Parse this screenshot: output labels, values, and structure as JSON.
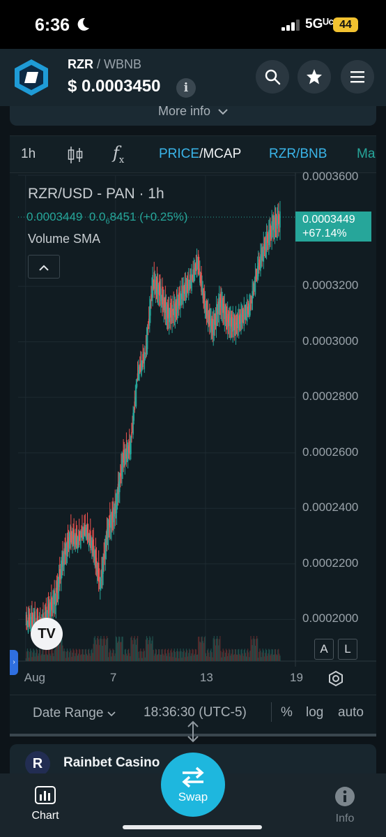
{
  "status": {
    "time": "6:36",
    "network": "5Gᵁᶜ",
    "battery": "44"
  },
  "header": {
    "base_symbol": "RZR",
    "separator": "/",
    "quote_symbol": "WBNB",
    "price": "$ 0.0003450"
  },
  "more_info_label": "More info",
  "toolbar": {
    "interval": "1h",
    "fx_label": "f",
    "fx_sub": "x",
    "price_label": "PRICE",
    "mcap_label": "/MCAP",
    "pair_label": "RZR/BNB",
    "ma_label": "Ma"
  },
  "legend": {
    "title": "RZR/USD - PAN · 1h",
    "value": "0.0003449",
    "change_prefix": "0.0",
    "change_sub": "6",
    "change_rest": "8451 (+0.25%)",
    "indicator": "Volume SMA"
  },
  "price_tag": {
    "value": "0.0003449",
    "change": "+67.14%"
  },
  "bottom_controls": {
    "date_range": "Date Range",
    "time": "18:36:30 (UTC-5)",
    "pct": "%",
    "log": "log",
    "auto": "auto"
  },
  "scale_buttons": {
    "a": "A",
    "l": "L"
  },
  "ad": {
    "name": "Rainbet Casino"
  },
  "nav": {
    "chart_label": "Chart",
    "swap_label": "Swap",
    "info_label": "Info"
  },
  "colors": {
    "up": "#26a69a",
    "down": "#ef5350",
    "accent": "#3ab4e8",
    "swap": "#1eb7de"
  },
  "chart_data": {
    "type": "line",
    "title": "RZR/USD - PAN · 1h",
    "y_ticks": [
      "0.0003600",
      "0.0003200",
      "0.0003000",
      "0.0002800",
      "0.0002600",
      "0.0002400",
      "0.0002200",
      "0.0002000"
    ],
    "x_ticks": [
      "Aug",
      "7",
      "13",
      "19"
    ],
    "ylim": [
      0.000185,
      0.00036
    ],
    "last_price": 0.0003449,
    "series": [
      {
        "x": [
          1,
          1.5,
          2,
          2.5,
          3,
          3.5,
          4,
          4.5,
          5,
          5.5,
          6,
          6.5,
          7,
          7.5,
          8,
          8.5,
          9,
          9.5,
          10,
          10.5,
          11,
          11.5,
          12,
          12.5,
          13,
          13.5,
          14,
          14.5,
          15,
          15.5,
          16,
          16.5,
          17,
          17.5,
          18
        ],
        "values": [
          0.000198,
          0.0002,
          0.000197,
          0.000203,
          0.000208,
          0.000222,
          0.00023,
          0.000228,
          0.000232,
          0.000226,
          0.000213,
          0.000233,
          0.00024,
          0.000258,
          0.000262,
          0.000288,
          0.000295,
          0.000322,
          0.000318,
          0.00031,
          0.000312,
          0.000318,
          0.000321,
          0.000328,
          0.000312,
          0.000305,
          0.000315,
          0.000308,
          0.000306,
          0.000309,
          0.000312,
          0.000326,
          0.000335,
          0.000342,
          0.0003449
        ]
      }
    ]
  }
}
